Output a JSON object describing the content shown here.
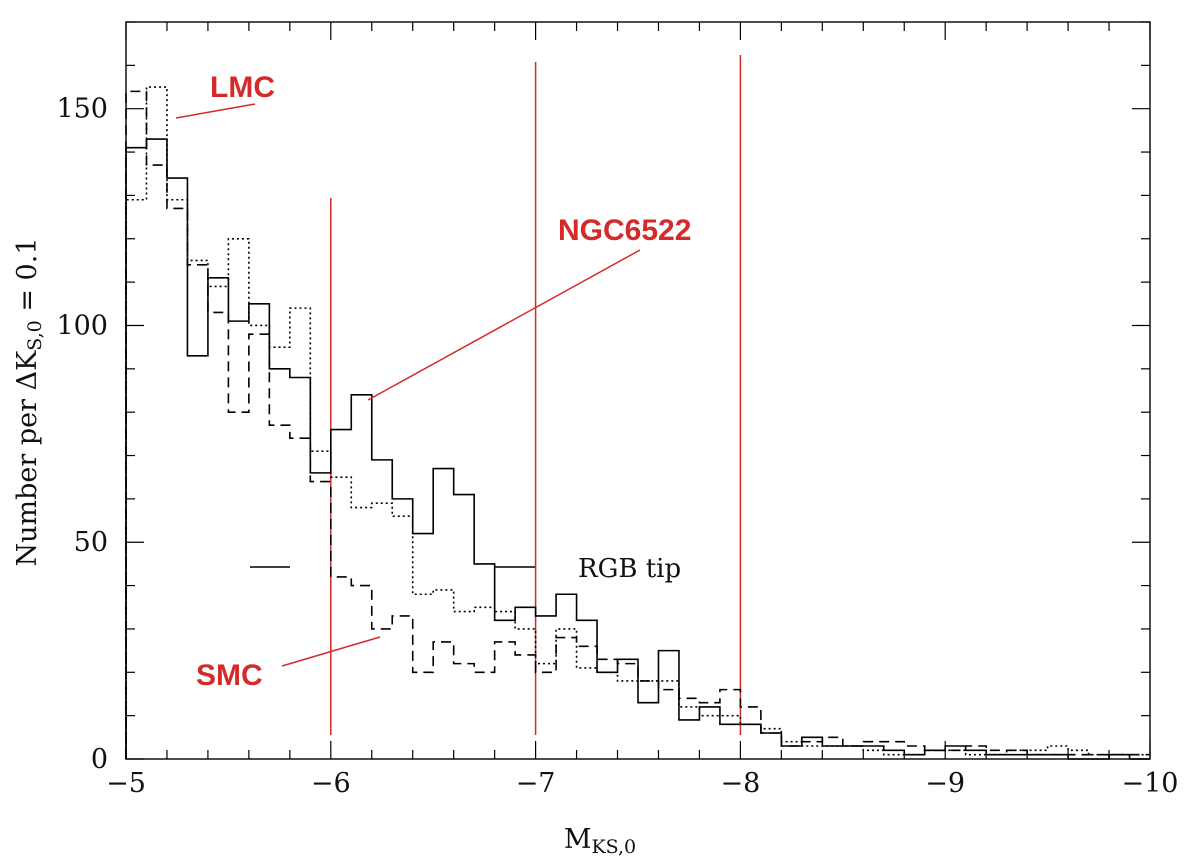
{
  "chart_data": {
    "type": "line",
    "xlabel": "M",
    "xlabel_sub": "KS,0",
    "ylabel_main": "Number per ΔK",
    "ylabel_sub": "S,0",
    "ylabel_tail": " = 0.1",
    "xlim": [
      -5,
      -10
    ],
    "ylim": [
      0,
      170
    ],
    "x_ticks": [
      -5,
      -6,
      -7,
      -8,
      -9,
      -10
    ],
    "x_tick_labels": [
      "−5",
      "−6",
      "−7",
      "−8",
      "−9",
      "−10"
    ],
    "y_ticks": [
      0,
      50,
      100,
      150
    ],
    "y_tick_labels": [
      "0",
      "50",
      "100",
      "150"
    ],
    "bin_width": 0.1,
    "bin_edges_start": -5.0,
    "series": [
      {
        "name": "NGC6522",
        "style": "solid",
        "values": [
          141,
          143,
          134,
          93,
          111,
          101,
          105,
          90,
          88,
          66,
          76,
          84,
          69,
          60,
          52,
          67,
          61,
          45,
          32,
          35,
          33,
          38,
          32,
          20,
          23,
          13,
          25,
          9,
          12,
          8,
          8,
          6,
          3,
          5,
          3,
          3,
          3,
          2,
          1,
          2,
          3,
          2,
          1,
          1,
          1,
          1,
          0,
          0,
          1,
          0
        ]
      },
      {
        "name": "LMC",
        "style": "dotted",
        "values": [
          129,
          155,
          129,
          115,
          109,
          120,
          100,
          95,
          104,
          71,
          65,
          58,
          59,
          56,
          38,
          39,
          34,
          35,
          34,
          30,
          22,
          30,
          21,
          20,
          18,
          18,
          18,
          12,
          10,
          10,
          8,
          7,
          4,
          3,
          3,
          3,
          2,
          1,
          1,
          2,
          2,
          1,
          1,
          2,
          2,
          3,
          2,
          1,
          1,
          1
        ]
      },
      {
        "name": "SMC",
        "style": "dashed",
        "values": [
          154,
          137,
          127,
          114,
          103,
          80,
          98,
          77,
          74,
          64,
          42,
          40,
          30,
          33,
          20,
          27,
          22,
          20,
          27,
          24,
          20,
          28,
          26,
          23,
          22,
          18,
          16,
          14,
          13,
          16,
          12,
          6,
          3,
          4,
          5,
          3,
          4,
          4,
          3,
          2,
          2,
          3,
          2,
          2,
          1,
          1,
          1,
          1,
          1,
          1
        ]
      }
    ],
    "vertical_lines": [
      -6,
      -7,
      -8
    ],
    "annotations": {
      "lmc": "LMC",
      "ngc": "NGC6522",
      "smc": "SMC",
      "rgb_tip": "RGB tip"
    },
    "colors": {
      "annotation": "#d42a2a",
      "axes": "#000000"
    }
  }
}
